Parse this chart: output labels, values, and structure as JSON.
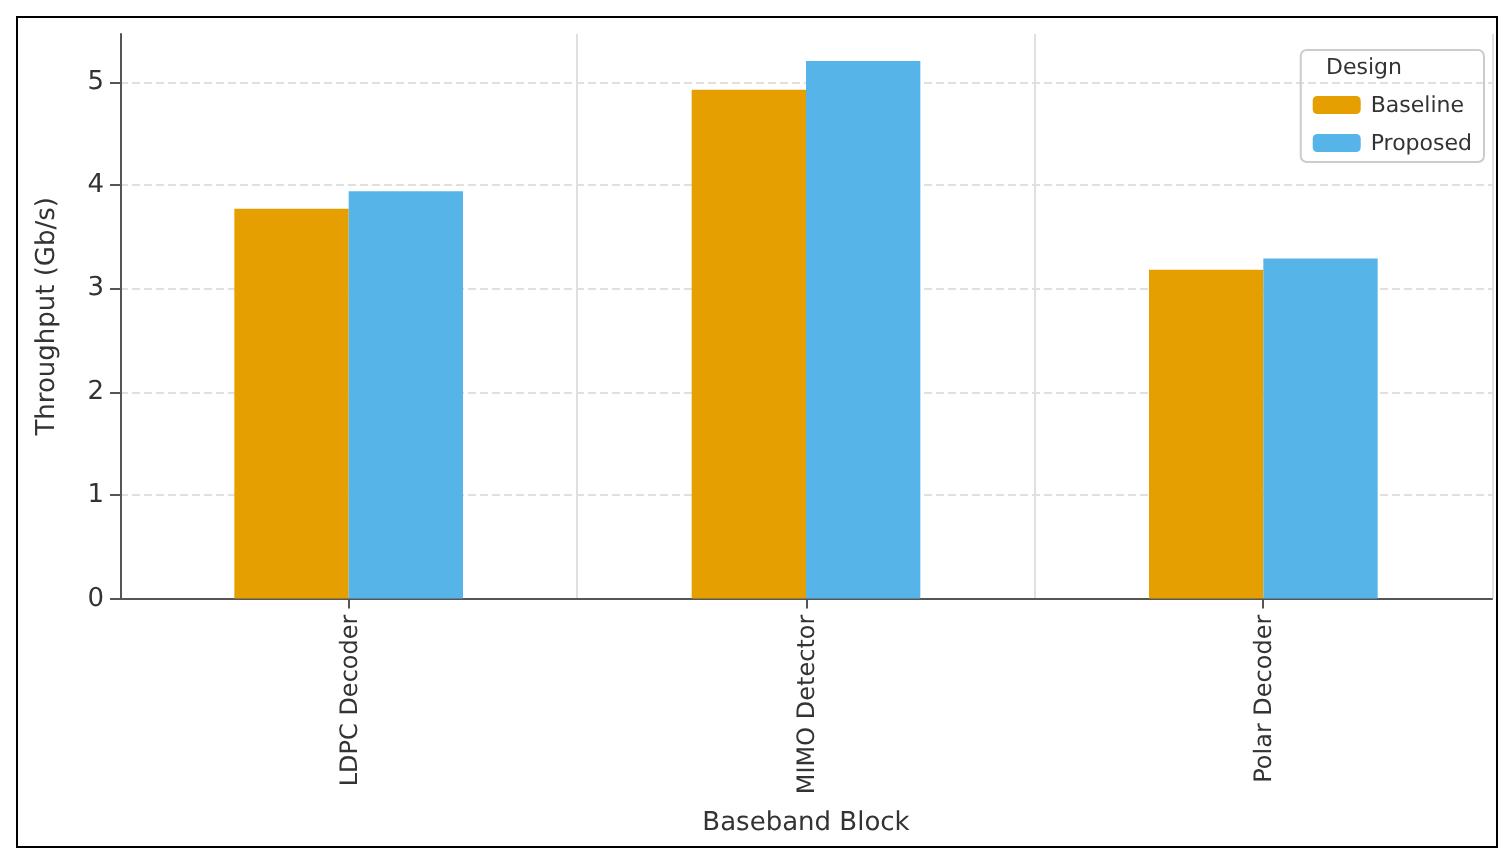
{
  "chart_data": {
    "type": "bar",
    "xlabel": "Baseband Block",
    "ylabel": "Throughput (Gb/s)",
    "legend_title": "Design",
    "categories": [
      "LDPC Decoder",
      "MIMO Detector",
      "Polar Decoder"
    ],
    "series": [
      {
        "name": "Baseline",
        "color": "#e69f00",
        "values": [
          3.77,
          4.92,
          3.18
        ]
      },
      {
        "name": "Proposed",
        "color": "#56b4e9",
        "values": [
          3.94,
          5.2,
          3.29
        ]
      }
    ],
    "ylim": [
      0,
      5.46
    ],
    "yticks": [
      0,
      1,
      2,
      3,
      4,
      5
    ],
    "grid": true,
    "legend": "top right"
  }
}
